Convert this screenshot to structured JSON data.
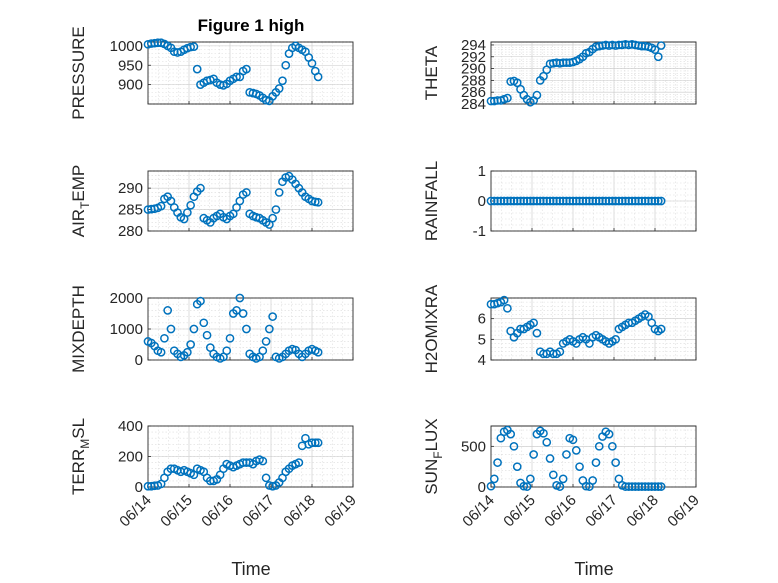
{
  "figure": {
    "title": "Figure 1 high",
    "marker_color": "#0072bd"
  },
  "x_ticks": [
    "06/14",
    "06/15",
    "06/16",
    "06/17",
    "06/18",
    "06/19"
  ],
  "x_label": "Time",
  "chart_data": [
    {
      "type": "scatter",
      "ylabel": "PRESSURE",
      "title": "Figure 1 high",
      "xlim": [
        0,
        5
      ],
      "ylim": [
        850,
        1010
      ],
      "yticks": [
        900,
        950,
        1000
      ],
      "x": [
        0,
        0.08,
        0.16,
        0.24,
        0.32,
        0.4,
        0.48,
        0.56,
        0.64,
        0.72,
        0.8,
        0.88,
        0.96,
        1.04,
        1.12,
        1.2,
        1.28,
        1.36,
        1.44,
        1.52,
        1.6,
        1.68,
        1.76,
        1.84,
        1.92,
        2.0,
        2.08,
        2.16,
        2.24,
        2.32,
        2.4,
        2.48,
        2.56,
        2.64,
        2.72,
        2.8,
        2.88,
        2.96,
        3.04,
        3.12,
        3.2,
        3.28,
        3.36,
        3.44,
        3.52,
        3.6,
        3.68,
        3.76,
        3.84,
        3.92,
        4.0,
        4.08,
        4.15
      ],
      "y": [
        1004,
        1006,
        1007,
        1008,
        1008,
        1005,
        1000,
        995,
        985,
        983,
        985,
        990,
        994,
        997,
        998,
        940,
        900,
        905,
        910,
        912,
        915,
        905,
        900,
        898,
        902,
        910,
        915,
        920,
        920,
        935,
        940,
        880,
        878,
        876,
        872,
        866,
        860,
        858,
        870,
        880,
        890,
        910,
        950,
        980,
        995,
        1000,
        995,
        990,
        985,
        970,
        955,
        935,
        920
      ]
    },
    {
      "type": "scatter",
      "ylabel": "THETA",
      "xlim": [
        0,
        5
      ],
      "ylim": [
        284,
        294.5
      ],
      "yticks": [
        284,
        286,
        288,
        290,
        292,
        294
      ],
      "x": [
        0,
        0.08,
        0.16,
        0.24,
        0.32,
        0.4,
        0.48,
        0.56,
        0.64,
        0.72,
        0.8,
        0.88,
        0.96,
        1.04,
        1.12,
        1.2,
        1.28,
        1.36,
        1.44,
        1.52,
        1.6,
        1.68,
        1.76,
        1.84,
        1.92,
        2.0,
        2.08,
        2.16,
        2.24,
        2.32,
        2.4,
        2.48,
        2.56,
        2.64,
        2.72,
        2.8,
        2.88,
        2.96,
        3.04,
        3.12,
        3.2,
        3.28,
        3.36,
        3.44,
        3.52,
        3.6,
        3.68,
        3.76,
        3.84,
        3.92,
        4.0,
        4.08,
        4.15
      ],
      "y": [
        284.5,
        284.5,
        284.6,
        284.6,
        284.8,
        285.0,
        287.8,
        287.9,
        287.6,
        286.5,
        285.5,
        284.8,
        284.3,
        284.6,
        285.5,
        288.0,
        288.7,
        289.8,
        290.8,
        290.9,
        291.0,
        290.9,
        291.0,
        291.0,
        291.0,
        291.1,
        291.3,
        291.6,
        292.0,
        292.6,
        292.8,
        293.3,
        293.7,
        293.8,
        293.9,
        294.0,
        293.9,
        294.0,
        293.9,
        294.0,
        294.0,
        294.1,
        294.0,
        294.1,
        294.0,
        293.9,
        293.8,
        293.8,
        293.7,
        293.5,
        293.2,
        292.0,
        293.9
      ]
    },
    {
      "type": "scatter",
      "ylabel": "AIR_TEMP",
      "xlim": [
        0,
        5
      ],
      "ylim": [
        280,
        294
      ],
      "yticks": [
        280,
        285,
        290
      ],
      "x": [
        0,
        0.08,
        0.16,
        0.24,
        0.32,
        0.4,
        0.48,
        0.56,
        0.64,
        0.72,
        0.8,
        0.88,
        0.96,
        1.04,
        1.12,
        1.2,
        1.28,
        1.36,
        1.44,
        1.52,
        1.6,
        1.68,
        1.76,
        1.84,
        1.92,
        2.0,
        2.08,
        2.16,
        2.24,
        2.32,
        2.4,
        2.48,
        2.56,
        2.64,
        2.72,
        2.8,
        2.88,
        2.96,
        3.04,
        3.12,
        3.2,
        3.28,
        3.36,
        3.44,
        3.52,
        3.6,
        3.68,
        3.76,
        3.84,
        3.92,
        4.0,
        4.08,
        4.15
      ],
      "y": [
        285.0,
        285.1,
        285.2,
        285.4,
        285.8,
        287.5,
        288.0,
        287.0,
        285.5,
        284.3,
        283.2,
        282.8,
        284.3,
        286.0,
        288.0,
        289.2,
        290.0,
        283.0,
        282.5,
        282.0,
        283.0,
        283.5,
        284.0,
        283.2,
        282.8,
        283.5,
        284.0,
        285.5,
        287.0,
        288.5,
        289.0,
        284.0,
        283.5,
        283.2,
        283.0,
        282.5,
        282.0,
        281.5,
        283.0,
        285.0,
        289.0,
        291.5,
        292.5,
        292.8,
        292.0,
        291.0,
        290.0,
        289.0,
        288.0,
        287.5,
        287.0,
        286.8,
        286.7
      ]
    },
    {
      "type": "scatter",
      "ylabel": "RAINFALL",
      "xlim": [
        0,
        5
      ],
      "ylim": [
        -1,
        1
      ],
      "yticks": [
        -1,
        0,
        1
      ],
      "x": [
        0,
        0.08,
        0.16,
        0.24,
        0.32,
        0.4,
        0.48,
        0.56,
        0.64,
        0.72,
        0.8,
        0.88,
        0.96,
        1.04,
        1.12,
        1.2,
        1.28,
        1.36,
        1.44,
        1.52,
        1.6,
        1.68,
        1.76,
        1.84,
        1.92,
        2.0,
        2.08,
        2.16,
        2.24,
        2.32,
        2.4,
        2.48,
        2.56,
        2.64,
        2.72,
        2.8,
        2.88,
        2.96,
        3.04,
        3.12,
        3.2,
        3.28,
        3.36,
        3.44,
        3.52,
        3.6,
        3.68,
        3.76,
        3.84,
        3.92,
        4.0,
        4.08,
        4.15
      ],
      "y": [
        0,
        0,
        0,
        0,
        0,
        0,
        0,
        0,
        0,
        0,
        0,
        0,
        0,
        0,
        0,
        0,
        0,
        0,
        0,
        0,
        0,
        0,
        0,
        0,
        0,
        0,
        0,
        0,
        0,
        0,
        0,
        0,
        0,
        0,
        0,
        0,
        0,
        0,
        0,
        0,
        0,
        0,
        0,
        0,
        0,
        0,
        0,
        0,
        0,
        0,
        0,
        0,
        0
      ]
    },
    {
      "type": "scatter",
      "ylabel": "MIXDEPTH",
      "xlim": [
        0,
        5
      ],
      "ylim": [
        0,
        2000
      ],
      "yticks": [
        0,
        1000,
        2000
      ],
      "x": [
        0,
        0.08,
        0.16,
        0.24,
        0.32,
        0.4,
        0.48,
        0.56,
        0.64,
        0.72,
        0.8,
        0.88,
        0.96,
        1.04,
        1.12,
        1.2,
        1.28,
        1.36,
        1.44,
        1.52,
        1.6,
        1.68,
        1.76,
        1.84,
        1.92,
        2.0,
        2.08,
        2.16,
        2.24,
        2.32,
        2.4,
        2.48,
        2.56,
        2.64,
        2.72,
        2.8,
        2.88,
        2.96,
        3.04,
        3.12,
        3.2,
        3.28,
        3.36,
        3.44,
        3.52,
        3.6,
        3.68,
        3.76,
        3.84,
        3.92,
        4.0,
        4.08,
        4.15
      ],
      "y": [
        600,
        550,
        450,
        300,
        250,
        700,
        1600,
        1000,
        300,
        200,
        100,
        150,
        250,
        500,
        1000,
        1800,
        1900,
        1200,
        800,
        400,
        200,
        100,
        50,
        100,
        300,
        700,
        1500,
        1600,
        2000,
        1500,
        1000,
        200,
        100,
        50,
        100,
        300,
        600,
        1000,
        1400,
        100,
        50,
        100,
        200,
        300,
        350,
        320,
        200,
        100,
        200,
        300,
        350,
        300,
        250
      ]
    },
    {
      "type": "scatter",
      "ylabel": "H2OMIXRA",
      "xlim": [
        0,
        5
      ],
      "ylim": [
        4,
        7
      ],
      "yticks": [
        4,
        5,
        6
      ],
      "x": [
        0,
        0.08,
        0.16,
        0.24,
        0.32,
        0.4,
        0.48,
        0.56,
        0.64,
        0.72,
        0.8,
        0.88,
        0.96,
        1.04,
        1.12,
        1.2,
        1.28,
        1.36,
        1.44,
        1.52,
        1.6,
        1.68,
        1.76,
        1.84,
        1.92,
        2.0,
        2.08,
        2.16,
        2.24,
        2.32,
        2.4,
        2.48,
        2.56,
        2.64,
        2.72,
        2.8,
        2.88,
        2.96,
        3.04,
        3.12,
        3.2,
        3.28,
        3.36,
        3.44,
        3.52,
        3.6,
        3.68,
        3.76,
        3.84,
        3.92,
        4.0,
        4.08,
        4.15
      ],
      "y": [
        6.7,
        6.7,
        6.75,
        6.8,
        6.9,
        6.5,
        5.4,
        5.1,
        5.3,
        5.5,
        5.5,
        5.6,
        5.7,
        5.8,
        5.3,
        4.4,
        4.3,
        4.3,
        4.4,
        4.3,
        4.3,
        4.4,
        4.8,
        4.9,
        5.0,
        4.9,
        4.8,
        5.0,
        5.1,
        5.0,
        4.8,
        5.1,
        5.2,
        5.1,
        5.0,
        4.9,
        4.8,
        4.9,
        5.0,
        5.5,
        5.6,
        5.7,
        5.8,
        5.8,
        5.9,
        6.0,
        6.1,
        6.2,
        6.1,
        5.8,
        5.5,
        5.4,
        5.5
      ]
    },
    {
      "type": "scatter",
      "ylabel": "TERR_MSL",
      "xlim": [
        0,
        5
      ],
      "ylim": [
        0,
        400
      ],
      "yticks": [
        0,
        200,
        400
      ],
      "x": [
        0,
        0.08,
        0.16,
        0.24,
        0.32,
        0.4,
        0.48,
        0.56,
        0.64,
        0.72,
        0.8,
        0.88,
        0.96,
        1.04,
        1.12,
        1.2,
        1.28,
        1.36,
        1.44,
        1.52,
        1.6,
        1.68,
        1.76,
        1.84,
        1.92,
        2.0,
        2.08,
        2.16,
        2.24,
        2.32,
        2.4,
        2.48,
        2.56,
        2.64,
        2.72,
        2.8,
        2.88,
        2.96,
        3.04,
        3.12,
        3.2,
        3.28,
        3.36,
        3.44,
        3.52,
        3.6,
        3.68,
        3.76,
        3.84,
        3.92,
        4.0,
        4.08,
        4.15
      ],
      "y": [
        5,
        5,
        8,
        10,
        20,
        60,
        100,
        120,
        120,
        110,
        100,
        110,
        100,
        90,
        80,
        120,
        110,
        100,
        60,
        40,
        40,
        50,
        80,
        120,
        150,
        140,
        130,
        140,
        150,
        160,
        160,
        160,
        150,
        170,
        180,
        170,
        60,
        10,
        5,
        10,
        30,
        60,
        100,
        120,
        140,
        150,
        160,
        270,
        320,
        280,
        290,
        290,
        290
      ]
    },
    {
      "type": "scatter",
      "ylabel": "SUN_FLUX",
      "xlim": [
        0,
        5
      ],
      "ylim": [
        0,
        750
      ],
      "yticks": [
        0,
        500
      ],
      "x": [
        0,
        0.08,
        0.16,
        0.24,
        0.32,
        0.4,
        0.48,
        0.56,
        0.64,
        0.72,
        0.8,
        0.88,
        0.96,
        1.04,
        1.12,
        1.2,
        1.28,
        1.36,
        1.44,
        1.52,
        1.6,
        1.68,
        1.76,
        1.84,
        1.92,
        2.0,
        2.08,
        2.16,
        2.24,
        2.32,
        2.4,
        2.48,
        2.56,
        2.64,
        2.72,
        2.8,
        2.88,
        2.96,
        3.04,
        3.12,
        3.2,
        3.28,
        3.36,
        3.44,
        3.52,
        3.6,
        3.68,
        3.76,
        3.84,
        3.92,
        4.0,
        4.08,
        4.15
      ],
      "y": [
        10,
        100,
        300,
        600,
        680,
        700,
        650,
        500,
        250,
        50,
        10,
        5,
        100,
        400,
        650,
        690,
        660,
        550,
        350,
        150,
        20,
        5,
        100,
        400,
        600,
        580,
        450,
        250,
        80,
        10,
        5,
        80,
        300,
        500,
        620,
        680,
        650,
        500,
        300,
        100,
        20,
        5,
        5,
        5,
        5,
        5,
        5,
        5,
        5,
        5,
        5,
        5,
        5
      ]
    }
  ]
}
